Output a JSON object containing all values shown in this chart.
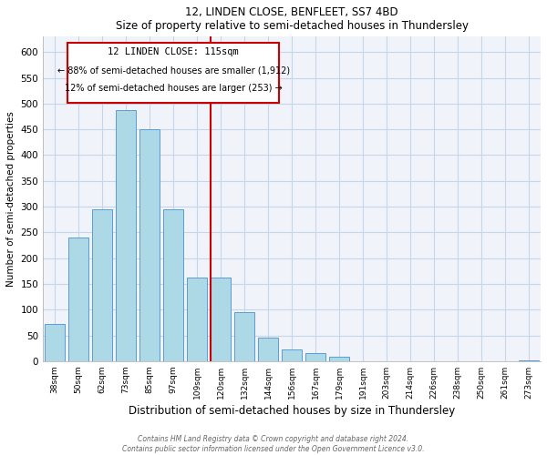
{
  "title": "12, LINDEN CLOSE, BENFLEET, SS7 4BD",
  "subtitle": "Size of property relative to semi-detached houses in Thundersley",
  "xlabel": "Distribution of semi-detached houses by size in Thundersley",
  "ylabel": "Number of semi-detached properties",
  "footer1": "Contains HM Land Registry data © Crown copyright and database right 2024.",
  "footer2": "Contains public sector information licensed under the Open Government Licence v3.0.",
  "bar_labels": [
    "38sqm",
    "50sqm",
    "62sqm",
    "73sqm",
    "85sqm",
    "97sqm",
    "109sqm",
    "120sqm",
    "132sqm",
    "144sqm",
    "156sqm",
    "167sqm",
    "179sqm",
    "191sqm",
    "203sqm",
    "214sqm",
    "226sqm",
    "238sqm",
    "250sqm",
    "261sqm",
    "273sqm"
  ],
  "bar_heights": [
    72,
    240,
    295,
    487,
    450,
    295,
    162,
    162,
    96,
    45,
    22,
    15,
    9,
    0,
    0,
    0,
    0,
    0,
    0,
    0,
    2
  ],
  "bar_color": "#add8e6",
  "bar_edge_color": "#5b9bd5",
  "annotation_label": "12 LINDEN CLOSE: 115sqm",
  "annotation_smaller": "← 88% of semi-detached houses are smaller (1,912)",
  "annotation_larger": "12% of semi-detached houses are larger (253) →",
  "marker_color": "#cc0000",
  "box_edge_color": "#cc0000",
  "ylim": [
    0,
    630
  ],
  "yticks": [
    0,
    50,
    100,
    150,
    200,
    250,
    300,
    350,
    400,
    450,
    500,
    550,
    600
  ],
  "grid_color": "#c8d4e8",
  "bg_color": "#f0f4fa"
}
